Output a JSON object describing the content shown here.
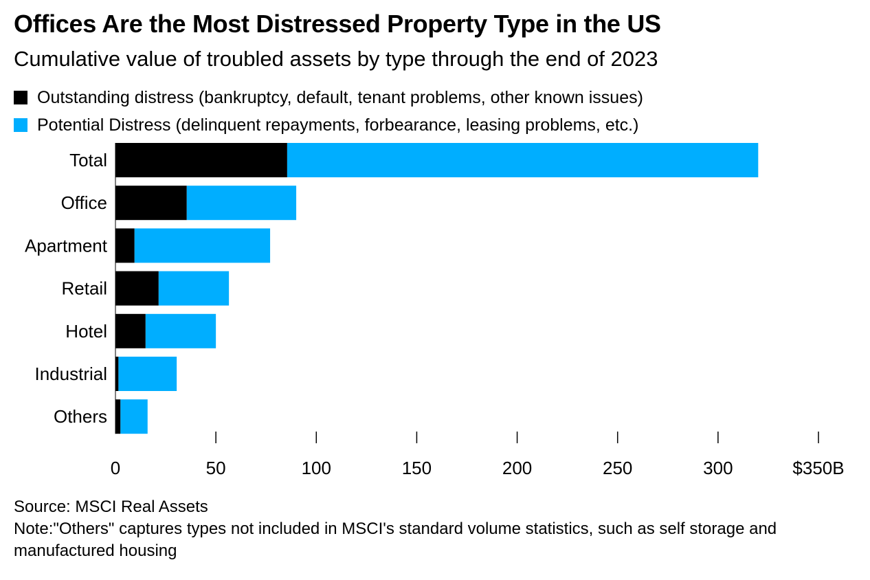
{
  "title": "Offices Are the Most Distressed Property Type in the US",
  "subtitle": "Cumulative value of troubled assets by type through the end of 2023",
  "legend": [
    {
      "label": "Outstanding distress (bankruptcy, default, tenant problems, other known issues)",
      "color": "#000000"
    },
    {
      "label": "Potential Distress (delinquent repayments, forbearance, leasing problems, etc.)",
      "color": "#00aeff"
    }
  ],
  "source": "Source: MSCI Real Assets",
  "note": "Note:\"Others\" captures types not included in MSCI's standard volume statistics, such as self storage and manufactured housing",
  "chart_data": {
    "type": "bar",
    "orientation": "horizontal",
    "stacked": true,
    "categories": [
      "Total",
      "Office",
      "Apartment",
      "Retail",
      "Hotel",
      "Industrial",
      "Others"
    ],
    "series": [
      {
        "name": "Outstanding distress (bankruptcy, default, tenant problems, other known issues)",
        "color": "#000000",
        "values": [
          85.5,
          35.5,
          9.5,
          21.5,
          15,
          1.5,
          2.5
        ]
      },
      {
        "name": "Potential Distress (delinquent repayments, forbearance, leasing problems, etc.)",
        "color": "#00aeff",
        "values": [
          234.5,
          54.5,
          67.5,
          35,
          35,
          29,
          13.5
        ]
      }
    ],
    "xlim": [
      0,
      350
    ],
    "xticks": [
      0,
      50,
      100,
      150,
      200,
      250,
      300,
      350
    ],
    "xtick_labels": [
      "0",
      "50",
      "100",
      "150",
      "200",
      "250",
      "300",
      "$350B"
    ],
    "grid": false,
    "legend_position": "top-left"
  }
}
